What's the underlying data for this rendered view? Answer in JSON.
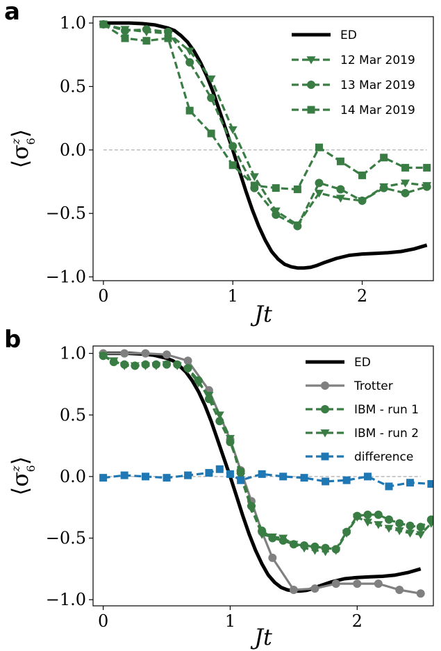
{
  "chart_data": [
    {
      "type": "line",
      "panel_label": "a",
      "xlabel": "Jt",
      "ylabel": "⟨σ",
      "ylabel_sup": "z",
      "ylabel_sub": "6",
      "ylabel_close": "⟩",
      "xlim": [
        -0.08,
        2.55
      ],
      "ylim": [
        -1.03,
        1.05
      ],
      "xticks": [
        0,
        1,
        2
      ],
      "xtick_labels": [
        "0",
        "1",
        "2"
      ],
      "yticks": [
        1.0,
        0.5,
        0.0,
        -0.5,
        -1.0
      ],
      "ytick_labels": [
        "1.0",
        "0.5",
        "0.0",
        "−0.5",
        "−1.0"
      ],
      "reference_line": 0.0,
      "grid": false,
      "legend_position": "top-right",
      "series": [
        {
          "name": "ED",
          "color": "#000000",
          "style": "solid",
          "marker": "none",
          "x": [
            0,
            0.1,
            0.2,
            0.3,
            0.4,
            0.5,
            0.55,
            0.6,
            0.65,
            0.7,
            0.75,
            0.8,
            0.85,
            0.9,
            0.95,
            1.0,
            1.05,
            1.1,
            1.15,
            1.2,
            1.25,
            1.3,
            1.35,
            1.4,
            1.45,
            1.5,
            1.55,
            1.6,
            1.65,
            1.7,
            1.8,
            1.9,
            2.0,
            2.1,
            2.2,
            2.3,
            2.4,
            2.5
          ],
          "y": [
            1.0,
            1.0,
            1.0,
            0.995,
            0.985,
            0.96,
            0.94,
            0.9,
            0.85,
            0.78,
            0.69,
            0.58,
            0.45,
            0.3,
            0.15,
            0.0,
            -0.16,
            -0.32,
            -0.47,
            -0.6,
            -0.71,
            -0.8,
            -0.86,
            -0.9,
            -0.92,
            -0.93,
            -0.93,
            -0.925,
            -0.91,
            -0.89,
            -0.855,
            -0.83,
            -0.82,
            -0.815,
            -0.81,
            -0.8,
            -0.78,
            -0.75
          ]
        },
        {
          "name": "12 Mar 2019",
          "color": "#3a7d44",
          "style": "dashed",
          "marker": "triangle-down",
          "x": [
            0,
            0.167,
            0.333,
            0.5,
            0.667,
            0.833,
            1.0,
            1.167,
            1.333,
            1.5,
            1.667,
            1.833,
            2.0,
            2.167,
            2.333,
            2.5
          ],
          "y": [
            0.99,
            0.95,
            0.93,
            0.92,
            0.78,
            0.56,
            0.16,
            -0.21,
            -0.48,
            -0.59,
            -0.34,
            -0.38,
            -0.4,
            -0.29,
            -0.26,
            -0.28
          ]
        },
        {
          "name": "13 Mar 2019",
          "color": "#3a7d44",
          "style": "dashed",
          "marker": "circle",
          "x": [
            0,
            0.167,
            0.333,
            0.5,
            0.667,
            0.833,
            1.0,
            1.167,
            1.333,
            1.5,
            1.667,
            1.833,
            2.0,
            2.167,
            2.333,
            2.5
          ],
          "y": [
            0.99,
            0.94,
            0.95,
            0.93,
            0.69,
            0.41,
            0.03,
            -0.3,
            -0.51,
            -0.6,
            -0.26,
            -0.31,
            -0.4,
            -0.3,
            -0.34,
            -0.29
          ]
        },
        {
          "name": "14 Mar 2019",
          "color": "#3a7d44",
          "style": "dashed",
          "marker": "square",
          "x": [
            0,
            0.167,
            0.333,
            0.5,
            0.667,
            0.833,
            1.0,
            1.167,
            1.333,
            1.5,
            1.667,
            1.833,
            2.0,
            2.167,
            2.333,
            2.5
          ],
          "y": [
            0.99,
            0.88,
            0.86,
            0.88,
            0.31,
            0.13,
            -0.12,
            -0.28,
            -0.3,
            -0.31,
            0.02,
            -0.09,
            -0.2,
            -0.06,
            -0.14,
            -0.14
          ]
        }
      ]
    },
    {
      "type": "line",
      "panel_label": "b",
      "xlabel": "Jt",
      "ylabel": "⟨σ",
      "ylabel_sup": "z",
      "ylabel_sub": "6",
      "ylabel_close": "⟩",
      "xlim": [
        -0.08,
        2.6
      ],
      "ylim": [
        -1.05,
        1.06
      ],
      "xticks": [
        0,
        1,
        2
      ],
      "xtick_labels": [
        "0",
        "1",
        "2"
      ],
      "yticks": [
        1.0,
        0.5,
        0.0,
        -0.5,
        -1.0
      ],
      "ytick_labels": [
        "1.0",
        "0.5",
        "0.0",
        "−0.5",
        "−1.0"
      ],
      "reference_line": 0.0,
      "grid": false,
      "legend_position": "top-right",
      "series": [
        {
          "name": "ED",
          "color": "#000000",
          "style": "solid",
          "marker": "none",
          "x": [
            0,
            0.1,
            0.2,
            0.3,
            0.4,
            0.5,
            0.55,
            0.6,
            0.65,
            0.7,
            0.75,
            0.8,
            0.85,
            0.9,
            0.95,
            1.0,
            1.05,
            1.1,
            1.15,
            1.2,
            1.25,
            1.3,
            1.35,
            1.4,
            1.45,
            1.5,
            1.55,
            1.6,
            1.65,
            1.7,
            1.8,
            1.9,
            2.0,
            2.1,
            2.2,
            2.3,
            2.4,
            2.5
          ],
          "y": [
            1.0,
            1.0,
            1.0,
            0.995,
            0.985,
            0.96,
            0.94,
            0.9,
            0.85,
            0.78,
            0.69,
            0.58,
            0.45,
            0.3,
            0.15,
            0.0,
            -0.16,
            -0.32,
            -0.47,
            -0.6,
            -0.71,
            -0.8,
            -0.86,
            -0.9,
            -0.92,
            -0.93,
            -0.93,
            -0.925,
            -0.91,
            -0.89,
            -0.855,
            -0.83,
            -0.82,
            -0.815,
            -0.81,
            -0.8,
            -0.78,
            -0.75
          ]
        },
        {
          "name": "Trotter",
          "color": "#808080",
          "style": "solid",
          "marker": "circle",
          "x": [
            0,
            0.167,
            0.333,
            0.5,
            0.667,
            0.833,
            1.0,
            1.083,
            1.167,
            1.25,
            1.333,
            1.5,
            1.667,
            1.833,
            2.0,
            2.167,
            2.333,
            2.5
          ],
          "y": [
            1.0,
            1.0,
            1.0,
            0.99,
            0.94,
            0.7,
            0.3,
            0.05,
            -0.2,
            -0.45,
            -0.66,
            -0.92,
            -0.91,
            -0.87,
            -0.87,
            -0.87,
            -0.92,
            -0.95
          ]
        },
        {
          "name": "IBM - run 1",
          "color": "#3a7d44",
          "style": "dashed",
          "marker": "circle",
          "x": [
            0,
            0.083,
            0.167,
            0.25,
            0.333,
            0.417,
            0.5,
            0.583,
            0.667,
            0.75,
            0.833,
            0.917,
            1.0,
            1.083,
            1.167,
            1.25,
            1.333,
            1.417,
            1.5,
            1.583,
            1.667,
            1.75,
            1.833,
            1.917,
            2.0,
            2.083,
            2.167,
            2.25,
            2.333,
            2.417,
            2.5,
            2.583
          ],
          "y": [
            0.98,
            0.93,
            0.91,
            0.9,
            0.91,
            0.91,
            0.91,
            0.91,
            0.88,
            0.78,
            0.63,
            0.45,
            0.28,
            0.04,
            -0.24,
            -0.44,
            -0.5,
            -0.52,
            -0.55,
            -0.56,
            -0.57,
            -0.58,
            -0.59,
            -0.45,
            -0.32,
            -0.31,
            -0.31,
            -0.35,
            -0.38,
            -0.4,
            -0.41,
            -0.35
          ]
        },
        {
          "name": "IBM - run 2",
          "color": "#3a7d44",
          "style": "dashed",
          "marker": "triangle-down",
          "x": [
            0,
            0.083,
            0.167,
            0.25,
            0.333,
            0.417,
            0.5,
            0.583,
            0.667,
            0.75,
            0.833,
            0.917,
            1.0,
            1.083,
            1.167,
            1.25,
            1.333,
            1.417,
            1.5,
            1.583,
            1.667,
            1.75,
            1.833,
            1.917,
            2.0,
            2.083,
            2.167,
            2.25,
            2.333,
            2.417,
            2.5,
            2.583
          ],
          "y": [
            0.98,
            0.94,
            0.9,
            0.9,
            0.9,
            0.9,
            0.91,
            0.9,
            0.87,
            0.76,
            0.66,
            0.5,
            0.31,
            0.0,
            -0.26,
            -0.47,
            -0.49,
            -0.5,
            -0.55,
            -0.58,
            -0.6,
            -0.61,
            -0.6,
            -0.46,
            -0.33,
            -0.37,
            -0.39,
            -0.42,
            -0.44,
            -0.46,
            -0.47,
            -0.38
          ]
        },
        {
          "name": "difference",
          "color": "#1f77b4",
          "style": "dashed",
          "marker": "square",
          "x": [
            0,
            0.167,
            0.333,
            0.5,
            0.667,
            0.833,
            0.917,
            1.0,
            1.083,
            1.25,
            1.417,
            1.583,
            1.75,
            1.917,
            2.083,
            2.25,
            2.417,
            2.583
          ],
          "y": [
            -0.01,
            0.01,
            0.0,
            -0.01,
            0.01,
            0.03,
            0.06,
            0.02,
            -0.03,
            0.02,
            0.0,
            -0.01,
            -0.04,
            -0.03,
            0.0,
            -0.08,
            -0.05,
            -0.06
          ]
        }
      ]
    }
  ]
}
